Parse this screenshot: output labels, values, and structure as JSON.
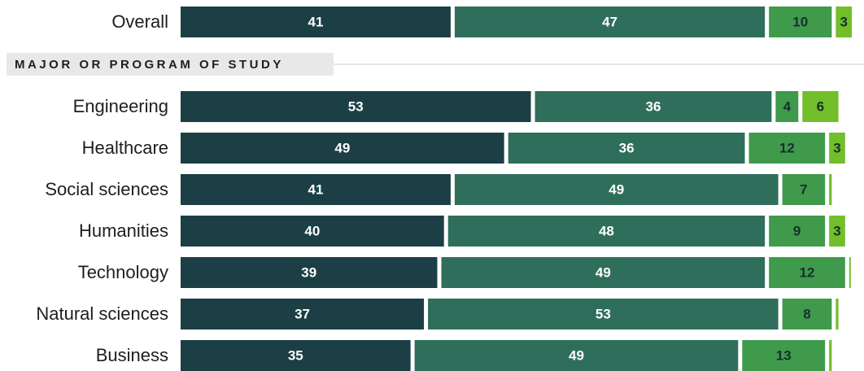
{
  "chart_data": {
    "type": "stacked-bar-horizontal",
    "section_label": "MAJOR OR PROGRAM OF STUDY",
    "categories": [
      "Overall",
      "Engineering",
      "Healthcare",
      "Social sciences",
      "Humanities",
      "Technology",
      "Natural sciences",
      "Business"
    ],
    "series": [
      {
        "color": "#1b3f45",
        "values": [
          41,
          53,
          49,
          41,
          40,
          39,
          37,
          35
        ]
      },
      {
        "color": "#2f6e5b",
        "values": [
          47,
          36,
          36,
          49,
          48,
          49,
          53,
          49
        ]
      },
      {
        "color": "#3f9a4c",
        "values": [
          10,
          4,
          12,
          7,
          9,
          12,
          8,
          13
        ]
      },
      {
        "color": "#72be2b",
        "values": [
          3,
          6,
          3,
          1,
          3,
          0.5,
          1,
          1
        ]
      }
    ]
  }
}
